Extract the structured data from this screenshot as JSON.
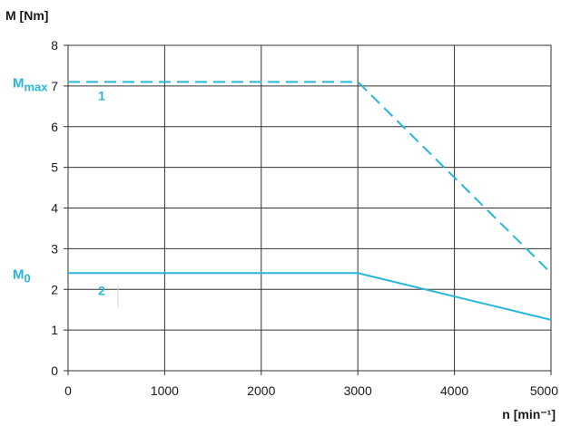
{
  "chart_data": {
    "type": "line",
    "ylabel": "M [Nm]",
    "xlabel": "n [min⁻¹]",
    "xlim": [
      0,
      5000
    ],
    "ylim": [
      0,
      8
    ],
    "x_ticks": [
      0,
      1000,
      2000,
      3000,
      4000,
      5000
    ],
    "y_ticks": [
      0,
      1,
      2,
      3,
      4,
      5,
      6,
      7,
      8
    ],
    "grid": true,
    "color": "#29b6dc",
    "series": [
      {
        "name": "1",
        "style": "dashed",
        "points": [
          [
            0,
            7.1
          ],
          [
            3000,
            7.1
          ],
          [
            5000,
            2.4
          ]
        ]
      },
      {
        "name": "2",
        "style": "solid",
        "points": [
          [
            0,
            2.4
          ],
          [
            3000,
            2.4
          ],
          [
            5000,
            1.25
          ]
        ]
      }
    ],
    "annotations": [
      {
        "label": "M",
        "subscript": "max",
        "y": 7.1
      },
      {
        "label": "M",
        "subscript": "0",
        "y": 2.4
      }
    ]
  }
}
